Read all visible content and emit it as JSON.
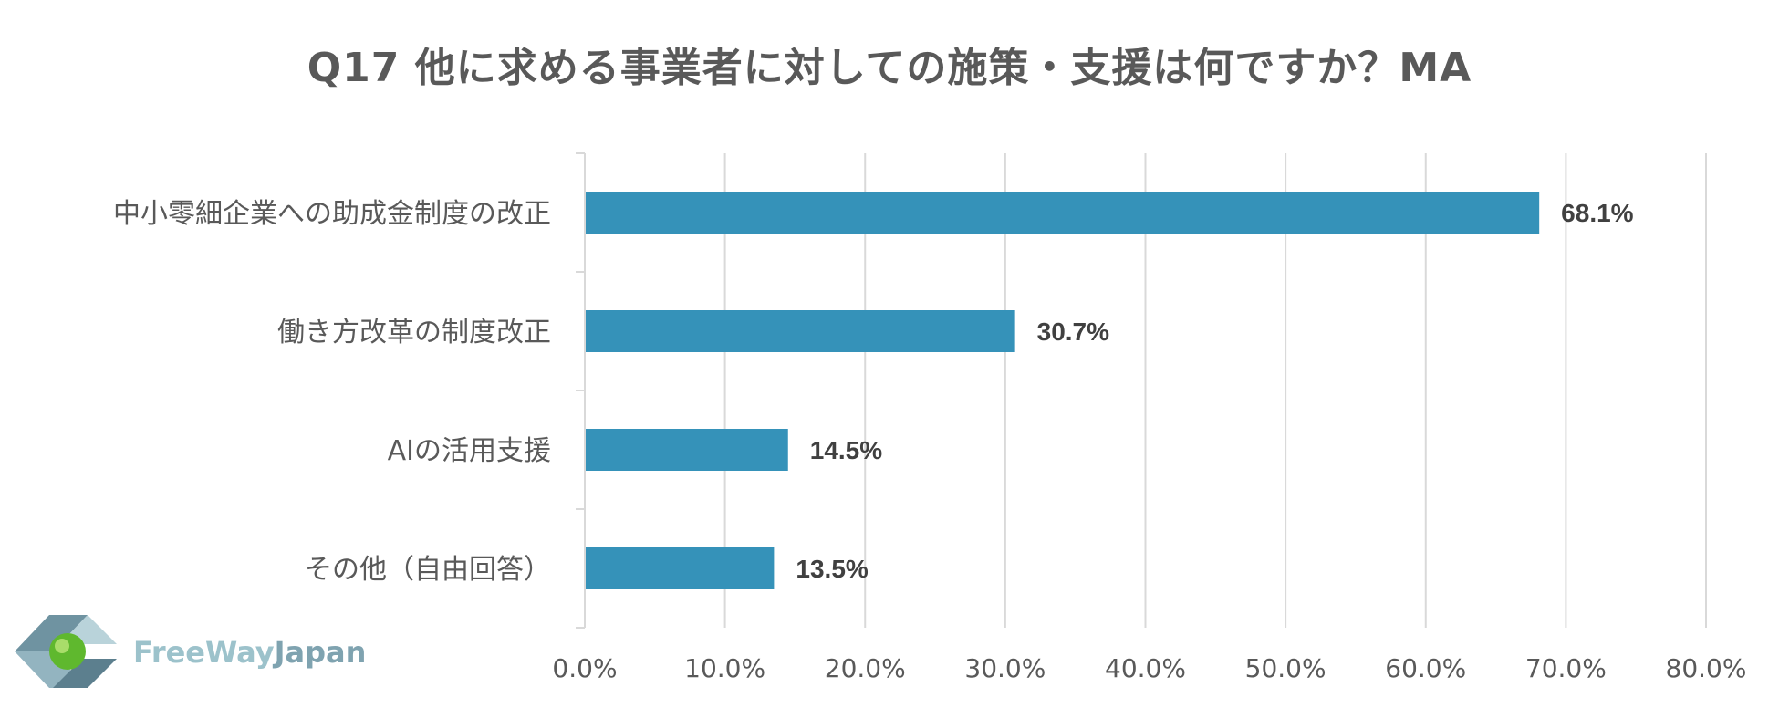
{
  "chart_data": {
    "type": "bar",
    "orientation": "horizontal",
    "title": "Q17 他に求める事業者に対しての施策・支援は何ですか？MA",
    "categories": [
      "中小零細企業への助成金制度の改正",
      "働き方改革の制度改正",
      "AIの活用支援",
      "その他（自由回答）"
    ],
    "values": [
      68.1,
      30.7,
      14.5,
      13.5
    ],
    "value_labels": [
      "68.1%",
      "30.7%",
      "14.5%",
      "13.5%"
    ],
    "x_ticks": [
      "0.0%",
      "10.0%",
      "20.0%",
      "30.0%",
      "40.0%",
      "50.0%",
      "60.0%",
      "70.0%",
      "80.0%"
    ],
    "xlim": [
      0,
      80
    ],
    "grid": true,
    "bar_color": "#3592b9",
    "gridline_color": "#d9d9d9"
  },
  "logo": {
    "part1": "FreeWay",
    "part2": "Japan"
  }
}
